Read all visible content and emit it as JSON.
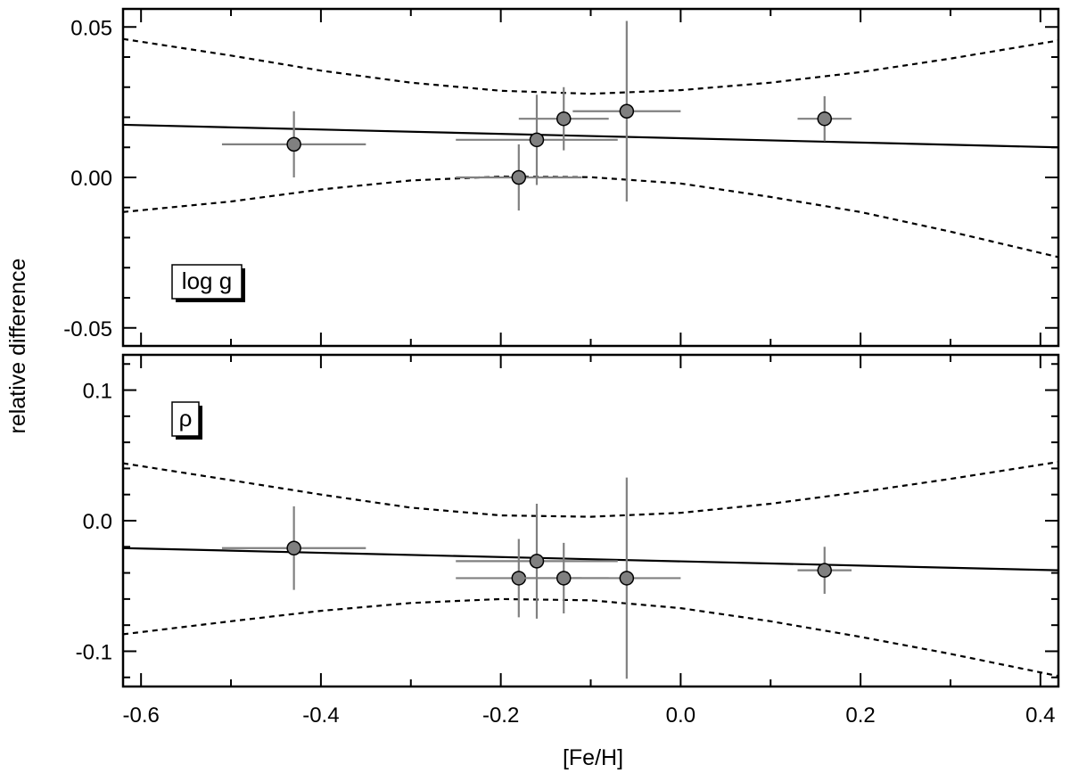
{
  "figure": {
    "ylabel": "relative difference",
    "xlabel": "[Fe/H]"
  },
  "chart_data": [
    {
      "type": "scatter",
      "panel_label": "log g",
      "xlim": [
        -0.62,
        0.42
      ],
      "ylim": [
        -0.056,
        0.056
      ],
      "x_ticks": [
        -0.6,
        -0.4,
        -0.2,
        0.0,
        0.2,
        0.4
      ],
      "x_tick_labels": [
        "-0.6",
        "-0.4",
        "-0.2",
        "0.0",
        "0.2",
        "0.4"
      ],
      "y_ticks": [
        0.05,
        0.0,
        -0.05
      ],
      "y_tick_labels": [
        "0.05",
        "0.00",
        "-0.05"
      ],
      "points": [
        {
          "x": -0.43,
          "y": 0.011,
          "xerr": 0.08,
          "yerr": 0.011
        },
        {
          "x": -0.18,
          "y": 0.0,
          "xerr": 0.07,
          "yerr": 0.011
        },
        {
          "x": -0.16,
          "y": 0.0125,
          "xerr": 0.09,
          "yerr": 0.015
        },
        {
          "x": -0.13,
          "y": 0.0195,
          "xerr": 0.05,
          "yerr": 0.0105
        },
        {
          "x": -0.06,
          "y": 0.022,
          "xerr": 0.06,
          "yerr": 0.03
        },
        {
          "x": 0.16,
          "y": 0.0195,
          "xerr": 0.03,
          "yerr": 0.0075
        }
      ],
      "fit_line": {
        "x": [
          -0.62,
          0.42
        ],
        "y": [
          0.0175,
          0.01
        ]
      },
      "upper_band": {
        "x": [
          -0.62,
          -0.5,
          -0.4,
          -0.3,
          -0.2,
          -0.1,
          0.0,
          0.1,
          0.2,
          0.3,
          0.42
        ],
        "y": [
          0.046,
          0.0405,
          0.0355,
          0.0315,
          0.0288,
          0.0278,
          0.029,
          0.0315,
          0.035,
          0.0395,
          0.0455
        ]
      },
      "lower_band": {
        "x": [
          -0.62,
          -0.5,
          -0.4,
          -0.3,
          -0.2,
          -0.1,
          0.0,
          0.1,
          0.2,
          0.3,
          0.42
        ],
        "y": [
          -0.0115,
          -0.008,
          -0.004,
          -0.001,
          0.0003,
          0.0001,
          -0.002,
          -0.0065,
          -0.0115,
          -0.018,
          -0.0265
        ]
      }
    },
    {
      "type": "scatter",
      "panel_label": "ρ",
      "xlim": [
        -0.62,
        0.42
      ],
      "ylim": [
        -0.127,
        0.127
      ],
      "x_ticks": [
        -0.6,
        -0.4,
        -0.2,
        0.0,
        0.2,
        0.4
      ],
      "x_tick_labels": [
        "-0.6",
        "-0.4",
        "-0.2",
        "0.0",
        "0.2",
        "0.4"
      ],
      "y_ticks": [
        0.1,
        0.0,
        -0.1
      ],
      "y_tick_labels": [
        "0.1",
        "0.0",
        "-0.1"
      ],
      "points": [
        {
          "x": -0.43,
          "y": -0.021,
          "xerr": 0.08,
          "yerr": 0.032
        },
        {
          "x": -0.18,
          "y": -0.044,
          "xerr": 0.07,
          "yerr": 0.03
        },
        {
          "x": -0.16,
          "y": -0.031,
          "xerr": 0.09,
          "yerr": 0.044
        },
        {
          "x": -0.13,
          "y": -0.044,
          "xerr": 0.05,
          "yerr": 0.027
        },
        {
          "x": -0.06,
          "y": -0.044,
          "xerr": 0.06,
          "yerr": 0.077
        },
        {
          "x": 0.16,
          "y": -0.038,
          "xerr": 0.03,
          "yerr": 0.018
        }
      ],
      "fit_line": {
        "x": [
          -0.62,
          0.42
        ],
        "y": [
          -0.021,
          -0.038
        ]
      },
      "upper_band": {
        "x": [
          -0.62,
          -0.5,
          -0.4,
          -0.3,
          -0.2,
          -0.1,
          0.0,
          0.1,
          0.2,
          0.3,
          0.42
        ],
        "y": [
          0.044,
          0.031,
          0.02,
          0.01,
          0.004,
          0.003,
          0.006,
          0.013,
          0.022,
          0.032,
          0.045
        ]
      },
      "lower_band": {
        "x": [
          -0.62,
          -0.5,
          -0.4,
          -0.3,
          -0.2,
          -0.1,
          0.0,
          0.1,
          0.2,
          0.3,
          0.42
        ],
        "y": [
          -0.087,
          -0.077,
          -0.069,
          -0.063,
          -0.06,
          -0.061,
          -0.067,
          -0.077,
          -0.089,
          -0.102,
          -0.119
        ]
      }
    }
  ]
}
